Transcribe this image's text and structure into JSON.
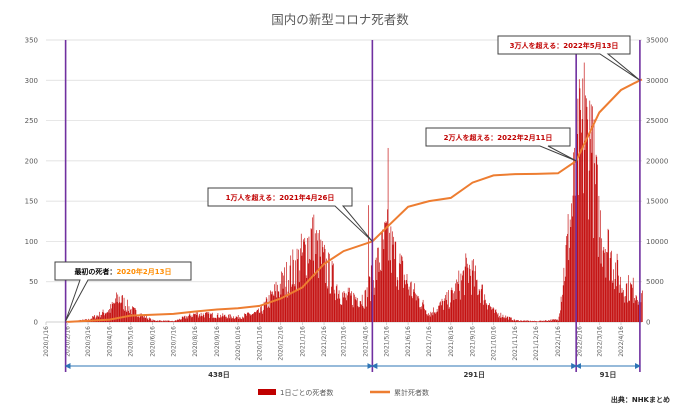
{
  "chart_data": {
    "type": "bar+line",
    "title": "国内の新型コロナ死者数",
    "y_left": {
      "min": 0,
      "max": 350,
      "ticks": [
        0,
        50,
        100,
        150,
        200,
        250,
        300,
        350
      ]
    },
    "y_right": {
      "min": 0,
      "max": 35000,
      "ticks": [
        0,
        5000,
        10000,
        15000,
        20000,
        25000,
        30000,
        35000
      ]
    },
    "x_range": [
      "2020/1/16",
      "2022/5/16"
    ],
    "x_tick_labels": [
      "2020/1/16",
      "2020/2/16",
      "2020/3/16",
      "2020/4/16",
      "2020/5/16",
      "2020/6/16",
      "2020/7/16",
      "2020/8/16",
      "2020/9/16",
      "2020/10/16",
      "2020/11/16",
      "2020/12/16",
      "2021/1/16",
      "2021/2/16",
      "2021/3/16",
      "2021/4/16",
      "2021/5/16",
      "2021/6/16",
      "2021/7/16",
      "2021/8/16",
      "2021/9/16",
      "2021/10/16",
      "2021/11/16",
      "2021/12/16",
      "2022/1/16",
      "2022/2/16",
      "2022/3/16",
      "2022/4/16"
    ],
    "series": [
      {
        "name": "1日ごとの死者数",
        "kind": "bar",
        "color": "#c00000",
        "approx_daily_envelope": [
          {
            "date": "2020/2/13",
            "value": 0
          },
          {
            "date": "2020/3/16",
            "value": 3
          },
          {
            "date": "2020/4/16",
            "value": 15
          },
          {
            "date": "2020/4/28",
            "value": 30
          },
          {
            "date": "2020/5/16",
            "value": 15
          },
          {
            "date": "2020/6/16",
            "value": 2
          },
          {
            "date": "2020/7/16",
            "value": 1
          },
          {
            "date": "2020/8/16",
            "value": 10
          },
          {
            "date": "2020/9/16",
            "value": 8
          },
          {
            "date": "2020/10/16",
            "value": 6
          },
          {
            "date": "2020/11/16",
            "value": 12
          },
          {
            "date": "2020/12/16",
            "value": 45
          },
          {
            "date": "2021/1/16",
            "value": 80
          },
          {
            "date": "2021/1/28",
            "value": 105
          },
          {
            "date": "2021/2/16",
            "value": 70
          },
          {
            "date": "2021/3/16",
            "value": 30
          },
          {
            "date": "2021/4/16",
            "value": 30
          },
          {
            "date": "2021/5/16",
            "value": 100
          },
          {
            "date": "2021/6/16",
            "value": 45
          },
          {
            "date": "2021/7/16",
            "value": 10
          },
          {
            "date": "2021/8/16",
            "value": 30
          },
          {
            "date": "2021/9/10",
            "value": 65
          },
          {
            "date": "2021/10/16",
            "value": 12
          },
          {
            "date": "2021/11/16",
            "value": 2
          },
          {
            "date": "2021/12/16",
            "value": 1
          },
          {
            "date": "2022/1/16",
            "value": 3
          },
          {
            "date": "2022/2/16",
            "value": 220
          },
          {
            "date": "2022/3/1",
            "value": 230
          },
          {
            "date": "2022/3/16",
            "value": 120
          },
          {
            "date": "2022/4/16",
            "value": 45
          },
          {
            "date": "2022/5/16",
            "value": 35
          }
        ],
        "notable_spikes": [
          {
            "date": "2021/5/18",
            "value": 216
          },
          {
            "date": "2021/4/20",
            "value": 145
          },
          {
            "date": "2022/2/22",
            "value": 322
          },
          {
            "date": "2022/2/16",
            "value": 290
          },
          {
            "date": "2022/3/4",
            "value": 270
          }
        ]
      },
      {
        "name": "累計死者数",
        "kind": "line",
        "axis": "right",
        "color": "#ed7d31",
        "points": [
          {
            "date": "2020/2/13",
            "value": 0
          },
          {
            "date": "2020/4/16",
            "value": 300
          },
          {
            "date": "2020/5/16",
            "value": 800
          },
          {
            "date": "2020/7/16",
            "value": 1000
          },
          {
            "date": "2020/8/16",
            "value": 1300
          },
          {
            "date": "2020/9/16",
            "value": 1550
          },
          {
            "date": "2020/10/16",
            "value": 1700
          },
          {
            "date": "2020/11/16",
            "value": 2000
          },
          {
            "date": "2020/12/16",
            "value": 2900
          },
          {
            "date": "2021/1/16",
            "value": 4300
          },
          {
            "date": "2021/2/16",
            "value": 7200
          },
          {
            "date": "2021/3/16",
            "value": 8800
          },
          {
            "date": "2021/4/26",
            "value": 10000
          },
          {
            "date": "2021/5/16",
            "value": 11700
          },
          {
            "date": "2021/6/16",
            "value": 14300
          },
          {
            "date": "2021/7/16",
            "value": 15000
          },
          {
            "date": "2021/8/16",
            "value": 15400
          },
          {
            "date": "2021/9/16",
            "value": 17300
          },
          {
            "date": "2021/10/16",
            "value": 18200
          },
          {
            "date": "2021/11/16",
            "value": 18360
          },
          {
            "date": "2021/12/16",
            "value": 18380
          },
          {
            "date": "2022/1/16",
            "value": 18450
          },
          {
            "date": "2022/2/11",
            "value": 20000
          },
          {
            "date": "2022/3/16",
            "value": 26000
          },
          {
            "date": "2022/4/16",
            "value": 28800
          },
          {
            "date": "2022/5/13",
            "value": 30000
          },
          {
            "date": "2022/5/16",
            "value": 30100
          }
        ]
      }
    ],
    "milestones": [
      {
        "date": "2020/2/13",
        "text_prefix": "最初の死者：",
        "text_date": "2020年2月13日"
      },
      {
        "date": "2021/4/26",
        "text_prefix": "1万人を超える：",
        "text_date": "2021年4月26日"
      },
      {
        "date": "2022/2/11",
        "text_prefix": "2万人を超える：",
        "text_date": "2022年2月11日"
      },
      {
        "date": "2022/5/13",
        "text_prefix": "3万人を超える：",
        "text_date": "2022年5月13日"
      }
    ],
    "durations": [
      {
        "from": "2020/2/13",
        "to": "2021/4/26",
        "label": "438日"
      },
      {
        "from": "2021/4/26",
        "to": "2022/2/11",
        "label": "291日"
      },
      {
        "from": "2022/2/11",
        "to": "2022/5/13",
        "label": "91日"
      }
    ],
    "legend": [
      {
        "label": "1日ごとの死者数",
        "color": "#c00000",
        "kind": "bar"
      },
      {
        "label": "累計死者数",
        "color": "#ed7d31",
        "kind": "line"
      }
    ],
    "source": "出典：NHKまとめ"
  }
}
